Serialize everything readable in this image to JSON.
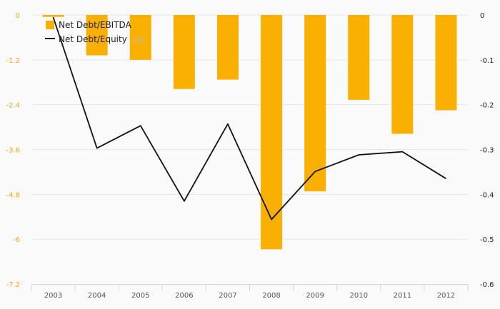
{
  "chart_data": {
    "type": "bar",
    "categories": [
      "2003",
      "2004",
      "2005",
      "2006",
      "2007",
      "2008",
      "2009",
      "2010",
      "2011",
      "2012"
    ],
    "series": [
      {
        "name": "Net Debt/EBITDA",
        "type": "bar",
        "axis": "left",
        "color": "#f9b000",
        "values": [
          -0.05,
          -1.08,
          -1.2,
          -1.98,
          -1.73,
          -6.27,
          -4.72,
          -2.27,
          -3.18,
          -2.55
        ]
      },
      {
        "name": "Net Debt/Equity",
        "unit": "(%)",
        "type": "line",
        "axis": "right",
        "color": "#111111",
        "values": [
          -0.005,
          -0.297,
          -0.247,
          -0.415,
          -0.243,
          -0.456,
          -0.349,
          -0.312,
          -0.305,
          -0.365
        ]
      }
    ],
    "y_left": {
      "min": -7.2,
      "max": 0,
      "ticks": [
        "0",
        "-1.2",
        "-2.4",
        "-3.6",
        "-4.8",
        "-6",
        "-7.2"
      ],
      "color": "#f5a623"
    },
    "y_right": {
      "min": -0.6,
      "max": 0,
      "ticks": [
        "0",
        "-0.1",
        "-0.2",
        "-0.3",
        "-0.4",
        "-0.5",
        "-0.6"
      ]
    },
    "grid": true,
    "legend": "top-left"
  }
}
